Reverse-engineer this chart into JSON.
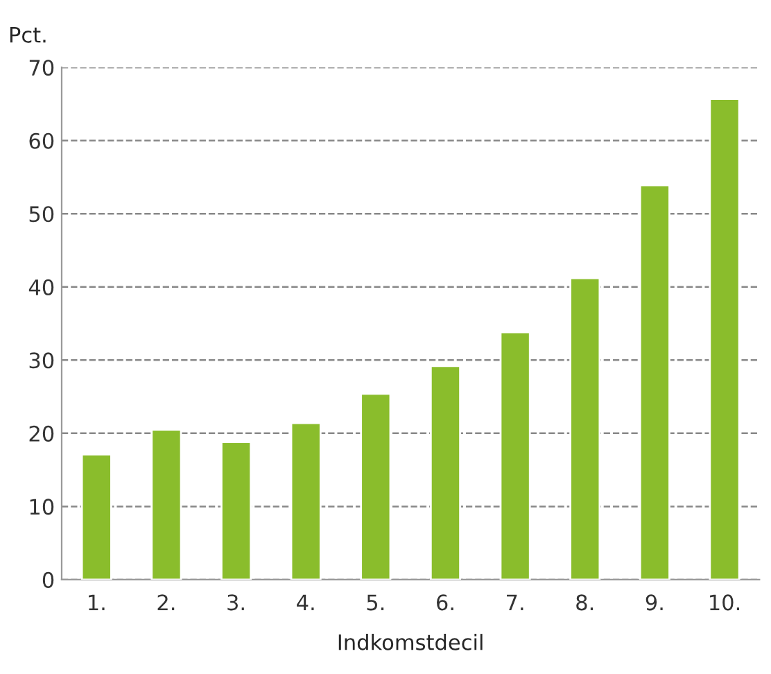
{
  "chart_data": {
    "type": "bar",
    "ylabel": "Pct.",
    "xlabel": "Indkomstdecil",
    "categories": [
      "1.",
      "2.",
      "3.",
      "4.",
      "5.",
      "6.",
      "7.",
      "8.",
      "9.",
      "10."
    ],
    "values": [
      17.1,
      20.5,
      18.8,
      21.4,
      25.4,
      29.2,
      33.8,
      41.2,
      53.9,
      65.7
    ],
    "color": "#8abd2c",
    "ylim": [
      0,
      70
    ],
    "yticks": [
      0,
      10,
      20,
      30,
      40,
      50,
      60,
      70
    ],
    "grid": "y",
    "legend": false
  }
}
